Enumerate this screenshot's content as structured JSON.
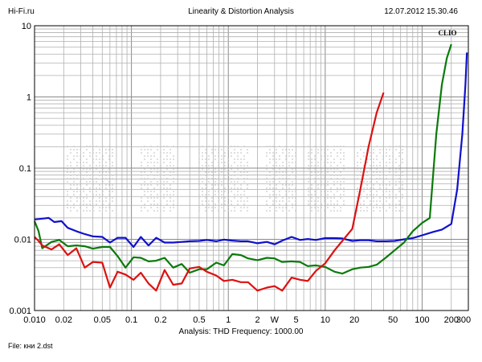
{
  "header": {
    "left": "Hi-Fi.ru",
    "center": "Linearity & Distortion Analysis",
    "right": "12.07.2012 15.30.46"
  },
  "footer": {
    "analysis": "Analysis: THD   Frequency: 1000.00",
    "file": "File: кни 2.dst"
  },
  "chart_data": {
    "type": "line",
    "title": "Linearity & Distortion Analysis",
    "xlabel": "",
    "ylabel": "",
    "x_scale": "log",
    "y_scale": "log",
    "xlim": [
      0.01,
      300
    ],
    "ylim": [
      0.001,
      10
    ],
    "grid": true,
    "brand_mark": "CLIO",
    "x_ticks": [
      "0.010",
      "0.02",
      "0.05",
      "0.1",
      "0.2",
      "0.5",
      "1",
      "2",
      "W",
      "5",
      "10",
      "20",
      "50",
      "100",
      "200",
      "300"
    ],
    "y_ticks": [
      "10",
      "1",
      "0.1",
      "0.01",
      "0.001"
    ],
    "series": [
      {
        "color": "#1010cc",
        "points": [
          [
            0.01,
            0.019
          ],
          [
            0.012,
            0.0195
          ],
          [
            0.014,
            0.02
          ],
          [
            0.016,
            0.0175
          ],
          [
            0.019,
            0.018
          ],
          [
            0.022,
            0.0145
          ],
          [
            0.027,
            0.013
          ],
          [
            0.032,
            0.012
          ],
          [
            0.04,
            0.011
          ],
          [
            0.05,
            0.0108
          ],
          [
            0.06,
            0.009
          ],
          [
            0.072,
            0.0105
          ],
          [
            0.087,
            0.0105
          ],
          [
            0.105,
            0.0078
          ],
          [
            0.125,
            0.0108
          ],
          [
            0.15,
            0.0082
          ],
          [
            0.18,
            0.0105
          ],
          [
            0.22,
            0.009
          ],
          [
            0.27,
            0.009
          ],
          [
            0.33,
            0.0092
          ],
          [
            0.4,
            0.0094
          ],
          [
            0.5,
            0.0095
          ],
          [
            0.6,
            0.0098
          ],
          [
            0.75,
            0.0094
          ],
          [
            0.9,
            0.0099
          ],
          [
            1.1,
            0.0096
          ],
          [
            1.35,
            0.0094
          ],
          [
            1.6,
            0.0094
          ],
          [
            2,
            0.0088
          ],
          [
            2.5,
            0.0092
          ],
          [
            3,
            0.0085
          ],
          [
            3.6,
            0.0096
          ],
          [
            4.5,
            0.0108
          ],
          [
            5.5,
            0.0098
          ],
          [
            6.6,
            0.0101
          ],
          [
            8,
            0.0098
          ],
          [
            10,
            0.0104
          ],
          [
            12.5,
            0.0104
          ],
          [
            15,
            0.0103
          ],
          [
            19,
            0.0095
          ],
          [
            23,
            0.0097
          ],
          [
            28,
            0.0097
          ],
          [
            34,
            0.0094
          ],
          [
            42,
            0.0094
          ],
          [
            52,
            0.0095
          ],
          [
            65,
            0.01
          ],
          [
            80,
            0.0104
          ],
          [
            100,
            0.0114
          ],
          [
            130,
            0.0127
          ],
          [
            160,
            0.0137
          ],
          [
            200,
            0.0165
          ],
          [
            230,
            0.05
          ],
          [
            260,
            0.3
          ],
          [
            280,
            1.5
          ],
          [
            290,
            4.2
          ]
        ]
      },
      {
        "color": "#0a7a0a",
        "points": [
          [
            0.01,
            0.018
          ],
          [
            0.011,
            0.013
          ],
          [
            0.012,
            0.0075
          ],
          [
            0.015,
            0.0092
          ],
          [
            0.018,
            0.0098
          ],
          [
            0.022,
            0.008
          ],
          [
            0.027,
            0.0082
          ],
          [
            0.033,
            0.008
          ],
          [
            0.04,
            0.0074
          ],
          [
            0.05,
            0.0078
          ],
          [
            0.06,
            0.0078
          ],
          [
            0.072,
            0.0058
          ],
          [
            0.087,
            0.004
          ],
          [
            0.105,
            0.0056
          ],
          [
            0.125,
            0.0055
          ],
          [
            0.15,
            0.0049
          ],
          [
            0.18,
            0.005
          ],
          [
            0.22,
            0.0055
          ],
          [
            0.27,
            0.004
          ],
          [
            0.33,
            0.0045
          ],
          [
            0.4,
            0.0034
          ],
          [
            0.5,
            0.0038
          ],
          [
            0.6,
            0.0038
          ],
          [
            0.75,
            0.0047
          ],
          [
            0.9,
            0.0043
          ],
          [
            1.1,
            0.0062
          ],
          [
            1.35,
            0.006
          ],
          [
            1.6,
            0.0054
          ],
          [
            2,
            0.0051
          ],
          [
            2.5,
            0.0055
          ],
          [
            3,
            0.0054
          ],
          [
            3.6,
            0.0048
          ],
          [
            4.5,
            0.0049
          ],
          [
            5.5,
            0.0048
          ],
          [
            6.6,
            0.0042
          ],
          [
            8,
            0.0043
          ],
          [
            10,
            0.0041
          ],
          [
            12.5,
            0.0035
          ],
          [
            15,
            0.0033
          ],
          [
            19,
            0.0038
          ],
          [
            23,
            0.004
          ],
          [
            28,
            0.0041
          ],
          [
            34,
            0.0044
          ],
          [
            42,
            0.0055
          ],
          [
            52,
            0.007
          ],
          [
            65,
            0.009
          ],
          [
            80,
            0.013
          ],
          [
            100,
            0.017
          ],
          [
            120,
            0.02
          ],
          [
            140,
            0.3
          ],
          [
            160,
            1.5
          ],
          [
            180,
            3.5
          ],
          [
            200,
            5.5
          ]
        ]
      },
      {
        "color": "#dd1111",
        "points": [
          [
            0.01,
            0.0108
          ],
          [
            0.011,
            0.0095
          ],
          [
            0.012,
            0.0082
          ],
          [
            0.015,
            0.0072
          ],
          [
            0.018,
            0.0085
          ],
          [
            0.022,
            0.006
          ],
          [
            0.027,
            0.0075
          ],
          [
            0.033,
            0.004
          ],
          [
            0.04,
            0.0048
          ],
          [
            0.05,
            0.0047
          ],
          [
            0.06,
            0.0021
          ],
          [
            0.072,
            0.0035
          ],
          [
            0.087,
            0.0032
          ],
          [
            0.105,
            0.0027
          ],
          [
            0.125,
            0.0034
          ],
          [
            0.15,
            0.0024
          ],
          [
            0.18,
            0.0019
          ],
          [
            0.22,
            0.0037
          ],
          [
            0.27,
            0.0023
          ],
          [
            0.33,
            0.0024
          ],
          [
            0.4,
            0.0039
          ],
          [
            0.5,
            0.0041
          ],
          [
            0.6,
            0.0035
          ],
          [
            0.75,
            0.0031
          ],
          [
            0.9,
            0.0026
          ],
          [
            1.1,
            0.0027
          ],
          [
            1.35,
            0.0025
          ],
          [
            1.6,
            0.0025
          ],
          [
            2,
            0.0019
          ],
          [
            2.5,
            0.0021
          ],
          [
            3,
            0.0022
          ],
          [
            3.6,
            0.0019
          ],
          [
            4.5,
            0.0029
          ],
          [
            5.5,
            0.0027
          ],
          [
            6.6,
            0.0026
          ],
          [
            8,
            0.0036
          ],
          [
            10,
            0.0046
          ],
          [
            12.5,
            0.007
          ],
          [
            15,
            0.0095
          ],
          [
            19,
            0.014
          ],
          [
            23,
            0.05
          ],
          [
            28,
            0.2
          ],
          [
            34,
            0.6
          ],
          [
            40,
            1.15
          ]
        ]
      }
    ]
  }
}
